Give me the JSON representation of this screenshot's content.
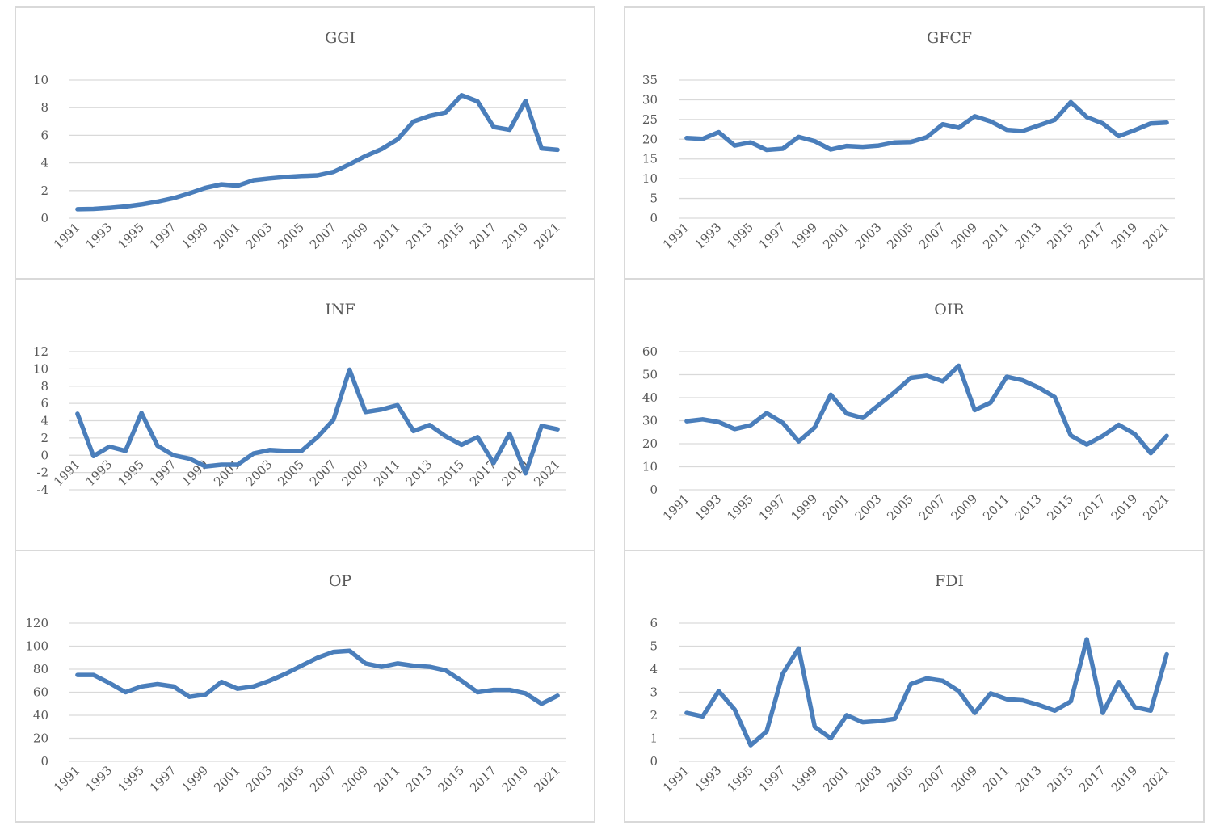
{
  "chart_data": [
    {
      "type": "line",
      "title": "GGI",
      "categories": [
        "1991",
        "1992",
        "1993",
        "1994",
        "1995",
        "1996",
        "1997",
        "1998",
        "1999",
        "2000",
        "2001",
        "2002",
        "2003",
        "2004",
        "2005",
        "2006",
        "2007",
        "2008",
        "2009",
        "2010",
        "2011",
        "2012",
        "2013",
        "2014",
        "2015",
        "2016",
        "2017",
        "2018",
        "2019",
        "2020",
        "2021"
      ],
      "x_tick_labels": [
        "1991",
        "1993",
        "1995",
        "1997",
        "1999",
        "2001",
        "2003",
        "2005",
        "2007",
        "2009",
        "2011",
        "2013",
        "2015",
        "2017",
        "2019",
        "2021"
      ],
      "ylim": [
        0,
        10
      ],
      "yticks": [
        0,
        2,
        4,
        6,
        8,
        10
      ],
      "grid": true,
      "color": "#4a7ebb",
      "series": [
        {
          "values": [
            0.65,
            0.67,
            0.75,
            0.85,
            1.0,
            1.2,
            1.45,
            1.8,
            2.2,
            2.45,
            2.35,
            2.75,
            2.88,
            2.98,
            3.05,
            3.1,
            3.35,
            3.9,
            4.5,
            5.0,
            5.7,
            7.0,
            7.4,
            7.65,
            8.9,
            8.45,
            6.6,
            6.4,
            8.5,
            5.05,
            4.95
          ]
        }
      ]
    },
    {
      "type": "line",
      "title": "GFCF",
      "categories": [
        "1991",
        "1992",
        "1993",
        "1994",
        "1995",
        "1996",
        "1997",
        "1998",
        "1999",
        "2000",
        "2001",
        "2002",
        "2003",
        "2004",
        "2005",
        "2006",
        "2007",
        "2008",
        "2009",
        "2010",
        "2011",
        "2012",
        "2013",
        "2014",
        "2015",
        "2016",
        "2017",
        "2018",
        "2019",
        "2020",
        "2021"
      ],
      "x_tick_labels": [
        "1991",
        "1993",
        "1995",
        "1997",
        "1999",
        "2001",
        "2003",
        "2005",
        "2007",
        "2009",
        "2011",
        "2013",
        "2015",
        "2017",
        "2019",
        "2021"
      ],
      "ylim": [
        0,
        35
      ],
      "yticks": [
        0,
        5,
        10,
        15,
        20,
        25,
        30,
        35
      ],
      "grid": true,
      "color": "#4a7ebb",
      "series": [
        {
          "values": [
            20.3,
            20.1,
            21.8,
            18.4,
            19.2,
            17.3,
            17.6,
            20.6,
            19.5,
            17.4,
            18.3,
            18.1,
            18.4,
            19.2,
            19.3,
            20.5,
            23.8,
            22.9,
            25.8,
            24.5,
            22.4,
            22.1,
            23.5,
            24.9,
            29.4,
            25.6,
            24.0,
            20.8,
            22.3,
            24.0,
            24.2
          ]
        }
      ]
    },
    {
      "type": "line",
      "title": "INF",
      "categories": [
        "1991",
        "1992",
        "1993",
        "1994",
        "1995",
        "1996",
        "1997",
        "1998",
        "1999",
        "2000",
        "2001",
        "2002",
        "2003",
        "2004",
        "2005",
        "2006",
        "2007",
        "2008",
        "2009",
        "2010",
        "2011",
        "2012",
        "2013",
        "2014",
        "2015",
        "2016",
        "2017",
        "2018",
        "2019",
        "2020",
        "2021"
      ],
      "x_tick_labels": [
        "1991",
        "1993",
        "1995",
        "1997",
        "1999",
        "2001",
        "2003",
        "2005",
        "2007",
        "2009",
        "2011",
        "2013",
        "2015",
        "2017",
        "2019",
        "2021"
      ],
      "ylim": [
        -4,
        12
      ],
      "yticks": [
        -4,
        -2,
        0,
        2,
        4,
        6,
        8,
        10,
        12
      ],
      "grid": true,
      "color": "#4a7ebb",
      "series": [
        {
          "values": [
            4.8,
            -0.1,
            1.0,
            0.5,
            4.9,
            1.1,
            0.0,
            -0.4,
            -1.3,
            -1.1,
            -1.1,
            0.2,
            0.6,
            0.5,
            0.5,
            2.1,
            4.1,
            9.9,
            5.0,
            5.3,
            5.8,
            2.8,
            3.5,
            2.2,
            1.2,
            2.1,
            -0.9,
            2.5,
            -2.1,
            3.4,
            3.0
          ]
        }
      ]
    },
    {
      "type": "line",
      "title": "OIR",
      "categories": [
        "1991",
        "1992",
        "1993",
        "1994",
        "1995",
        "1996",
        "1997",
        "1998",
        "1999",
        "2000",
        "2001",
        "2002",
        "2003",
        "2004",
        "2005",
        "2006",
        "2007",
        "2008",
        "2009",
        "2010",
        "2011",
        "2012",
        "2013",
        "2014",
        "2015",
        "2016",
        "2017",
        "2018",
        "2019",
        "2020",
        "2021"
      ],
      "x_tick_labels": [
        "1991",
        "1993",
        "1995",
        "1997",
        "1999",
        "2001",
        "2003",
        "2005",
        "2007",
        "2009",
        "2011",
        "2013",
        "2015",
        "2017",
        "2019",
        "2021"
      ],
      "ylim": [
        0,
        60
      ],
      "yticks": [
        0,
        10,
        20,
        30,
        40,
        50,
        60
      ],
      "grid": true,
      "color": "#4a7ebb",
      "series": [
        {
          "values": [
            29.8,
            30.6,
            29.4,
            26.4,
            28.0,
            33.3,
            29.1,
            21.0,
            27.1,
            41.3,
            33.1,
            31.2,
            36.8,
            42.4,
            48.6,
            49.5,
            47.1,
            53.9,
            34.6,
            37.9,
            49.1,
            47.5,
            44.4,
            40.2,
            23.6,
            19.6,
            23.4,
            28.2,
            24.2,
            15.9,
            23.4
          ]
        }
      ]
    },
    {
      "type": "line",
      "title": "OP",
      "categories": [
        "1991",
        "1992",
        "1993",
        "1994",
        "1995",
        "1996",
        "1997",
        "1998",
        "1999",
        "2000",
        "2001",
        "2002",
        "2003",
        "2004",
        "2005",
        "2006",
        "2007",
        "2008",
        "2009",
        "2010",
        "2011",
        "2012",
        "2013",
        "2014",
        "2015",
        "2016",
        "2017",
        "2018",
        "2019",
        "2020",
        "2021"
      ],
      "x_tick_labels": [
        "1991",
        "1993",
        "1995",
        "1997",
        "1999",
        "2001",
        "2003",
        "2005",
        "2007",
        "2009",
        "2011",
        "2013",
        "2015",
        "2017",
        "2019",
        "2021"
      ],
      "ylim": [
        0,
        120
      ],
      "yticks": [
        0,
        20,
        40,
        60,
        80,
        100,
        120
      ],
      "grid": true,
      "color": "#4a7ebb",
      "series": [
        {
          "values": [
            75,
            75,
            68,
            60,
            65,
            67,
            65,
            56,
            58,
            69,
            63,
            65,
            70,
            76,
            83,
            90,
            95,
            96,
            85,
            82,
            85,
            83,
            82,
            79,
            70,
            60,
            62,
            62,
            59,
            50,
            57
          ]
        }
      ]
    },
    {
      "type": "line",
      "title": "FDI",
      "categories": [
        "1991",
        "1992",
        "1993",
        "1994",
        "1995",
        "1996",
        "1997",
        "1998",
        "1999",
        "2000",
        "2001",
        "2002",
        "2003",
        "2004",
        "2005",
        "2006",
        "2007",
        "2008",
        "2009",
        "2010",
        "2011",
        "2012",
        "2013",
        "2014",
        "2015",
        "2016",
        "2017",
        "2018",
        "2019",
        "2020",
        "2021"
      ],
      "x_tick_labels": [
        "1991",
        "1993",
        "1995",
        "1997",
        "1999",
        "2001",
        "2003",
        "2005",
        "2007",
        "2009",
        "2011",
        "2013",
        "2015",
        "2017",
        "2019",
        "2021"
      ],
      "ylim": [
        0,
        6
      ],
      "yticks": [
        0,
        1,
        2,
        3,
        4,
        5,
        6
      ],
      "grid": true,
      "color": "#4a7ebb",
      "series": [
        {
          "values": [
            2.1,
            1.95,
            3.05,
            2.25,
            0.7,
            1.3,
            3.8,
            4.9,
            1.5,
            1.0,
            2.0,
            1.7,
            1.75,
            1.85,
            3.35,
            3.6,
            3.5,
            3.05,
            2.1,
            2.95,
            2.7,
            2.65,
            2.45,
            2.2,
            2.6,
            5.3,
            2.1,
            3.45,
            2.35,
            2.2,
            4.65
          ]
        }
      ]
    }
  ]
}
